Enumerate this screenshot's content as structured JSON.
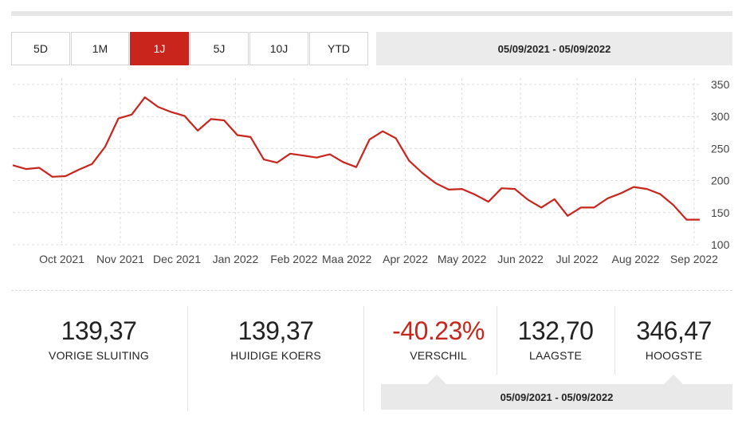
{
  "range_buttons": [
    {
      "label": "5D",
      "active": false
    },
    {
      "label": "1M",
      "active": false
    },
    {
      "label": "1J",
      "active": true
    },
    {
      "label": "5J",
      "active": false
    },
    {
      "label": "10J",
      "active": false
    },
    {
      "label": "YTD",
      "active": false
    }
  ],
  "date_range": "05/09/2021 - 05/09/2022",
  "colors": {
    "accent": "#c9251c",
    "grid": "#dcdcdc",
    "panel": "#ebebeb"
  },
  "chart_data": {
    "type": "line",
    "x_tick_labels": [
      "Oct 2021",
      "Nov 2021",
      "Dec 2021",
      "Jan 2022",
      "Feb 2022",
      "Maa 2022",
      "Apr 2022",
      "May 2022",
      "Jun 2022",
      "Jul 2022",
      "Aug 2022",
      "Sep 2022"
    ],
    "y_ticks": [
      100,
      150,
      200,
      250,
      300,
      350
    ],
    "ylim": [
      100,
      350
    ],
    "y_axis_position": "right",
    "grid": true,
    "series": [
      {
        "color": "#c9251c",
        "x": [
          "2021-09-05",
          "2021-09-12",
          "2021-09-19",
          "2021-09-26",
          "2021-10-03",
          "2021-10-10",
          "2021-10-17",
          "2021-10-24",
          "2021-10-31",
          "2021-11-07",
          "2021-11-14",
          "2021-11-21",
          "2021-11-28",
          "2021-12-05",
          "2021-12-12",
          "2021-12-19",
          "2021-12-26",
          "2022-01-02",
          "2022-01-09",
          "2022-01-16",
          "2022-01-23",
          "2022-01-30",
          "2022-02-06",
          "2022-02-13",
          "2022-02-20",
          "2022-02-27",
          "2022-03-06",
          "2022-03-13",
          "2022-03-20",
          "2022-03-27",
          "2022-04-03",
          "2022-04-10",
          "2022-04-17",
          "2022-04-24",
          "2022-05-01",
          "2022-05-08",
          "2022-05-15",
          "2022-05-22",
          "2022-05-29",
          "2022-06-05",
          "2022-06-12",
          "2022-06-19",
          "2022-06-26",
          "2022-07-03",
          "2022-07-10",
          "2022-07-17",
          "2022-07-24",
          "2022-07-31",
          "2022-08-07",
          "2022-08-14",
          "2022-08-21",
          "2022-08-28",
          "2022-09-04"
        ],
        "y": [
          224,
          218,
          220,
          206,
          207,
          217,
          226,
          253,
          297,
          303,
          330,
          315,
          307,
          301,
          278,
          296,
          294,
          271,
          268,
          233,
          228,
          242,
          239,
          236,
          241,
          229,
          221,
          264,
          277,
          266,
          231,
          212,
          196,
          186,
          187,
          178,
          167,
          188,
          187,
          170,
          158,
          171,
          145,
          158,
          158,
          172,
          180,
          190,
          187,
          179,
          162,
          139,
          139
        ]
      }
    ]
  },
  "stats": [
    {
      "value": "139,37",
      "label": "VORIGE SLUITING"
    },
    {
      "value": "139,37",
      "label": "HUIDIGE KOERS"
    },
    {
      "value": "-40.23%",
      "label": "VERSCHIL"
    },
    {
      "value": "132,70",
      "label": "LAAGSTE"
    },
    {
      "value": "346,47",
      "label": "HOOGSTE"
    }
  ],
  "stats_date_range": "05/09/2021 - 05/09/2022"
}
